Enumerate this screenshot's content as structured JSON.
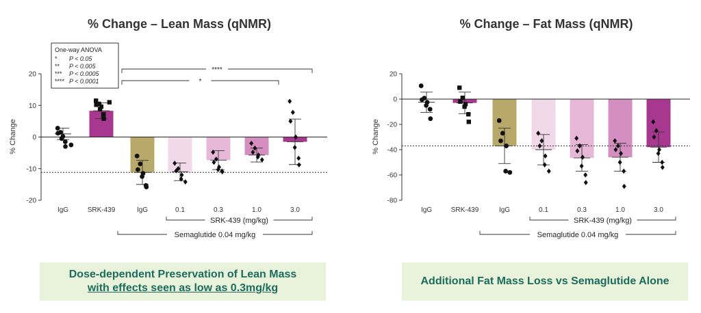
{
  "colors": {
    "igg": "#ffffff",
    "srk": "#a8378f",
    "sema": "#b8a96a",
    "dose_0_1": "#f1d9ea",
    "dose_0_3": "#e6b7d6",
    "dose_1_0": "#d48fc0",
    "dose_3_0": "#a8378f",
    "caption_text": "#1c6b5c",
    "caption_bg": "#e9f3dc"
  },
  "chart_data": [
    {
      "type": "bar",
      "title": "% Change – Lean Mass (qNMR)",
      "ylabel": "% Change",
      "ylim": [
        -20,
        20
      ],
      "yticks": [
        -20,
        -10,
        0,
        10,
        20
      ],
      "categories": [
        "IgG",
        "SRK-439",
        "IgG",
        "0.1",
        "0.3",
        "1.0",
        "3.0"
      ],
      "values": [
        1,
        8.3,
        -11.2,
        -11,
        -7.3,
        -5.7,
        -1.5
      ],
      "errors": [
        1.8,
        2.5,
        3.8,
        2.8,
        3,
        2.2,
        7.2
      ],
      "points": [
        [
          2.8,
          1.5,
          1.2,
          0.2,
          -0.5,
          -1.5,
          -3,
          -2.5
        ],
        [
          11.5,
          10.5,
          10.2,
          9.6,
          8.8,
          7.2,
          5.8,
          11
        ],
        [
          -6,
          -8.5,
          -10.3,
          -11.5,
          -12.5,
          -15.3,
          -15.8
        ],
        [
          -8.3,
          -10,
          -10.7,
          -12,
          -13.3,
          -14.2
        ],
        [
          -4.8,
          -7,
          -8,
          -9.5,
          -10.3,
          -10.8,
          -11
        ],
        [
          -2,
          -3.5,
          -4.8,
          -5.7,
          -6.3,
          -7.2
        ],
        [
          11.3,
          7.8,
          5,
          0,
          -3.3,
          -6.7,
          -8.8
        ]
      ],
      "group_axis_label": "SRK-439 (mg/kg)",
      "treatment_label": "Semaglutide 0.04 mg/kg",
      "reference_line": -11.2,
      "significance": [
        {
          "label": "****"
        },
        {
          "label": "*"
        }
      ],
      "legend": {
        "title": "One-way ANOVA",
        "rows": [
          {
            "stars": "*",
            "p": "P < 0.05"
          },
          {
            "stars": "**",
            "p": "P < 0.005"
          },
          {
            "stars": "***",
            "p": "P < 0.0005"
          },
          {
            "stars": "****",
            "p": "P < 0.0001"
          }
        ]
      }
    },
    {
      "type": "bar",
      "title": "% Change – Fat Mass (qNMR)",
      "ylabel": "% Change",
      "ylim": [
        -80,
        20
      ],
      "yticks": [
        -80,
        -60,
        -40,
        -20,
        0,
        20
      ],
      "categories": [
        "IgG",
        "SRK-439",
        "IgG",
        "0.1",
        "0.3",
        "1.0",
        "3.0"
      ],
      "values": [
        -2.5,
        -3,
        -37,
        -40,
        -46.5,
        -46,
        -38
      ],
      "errors": [
        8,
        8.5,
        14,
        12,
        10.5,
        11,
        12
      ],
      "points": [
        [
          10.5,
          0.8,
          -0.5,
          -2.5,
          -5,
          -8,
          -15.5
        ],
        [
          9,
          1,
          -2,
          -4,
          -6,
          -12,
          -18
        ],
        [
          -17,
          -27,
          -33,
          -37,
          -57,
          -58
        ],
        [
          -27,
          -33,
          -37,
          -45,
          -52,
          -57
        ],
        [
          -31,
          -37,
          -41,
          -46,
          -53,
          -60,
          -66
        ],
        [
          -33,
          -37,
          -40,
          -43,
          -50,
          -57,
          -69
        ],
        [
          -18,
          -25,
          -30,
          -40,
          -43,
          -50,
          -54
        ]
      ],
      "group_axis_label": "SRK-439 (mg/kg)",
      "treatment_label": "Semaglutide 0.04 mg/kg",
      "reference_line": -37
    }
  ],
  "captions": {
    "lean_line1": "Dose-dependent Preservation of Lean Mass",
    "lean_line2": "with effects seen as low as 0.3mg/kg",
    "fat": "Additional Fat Mass Loss vs Semaglutide Alone"
  }
}
